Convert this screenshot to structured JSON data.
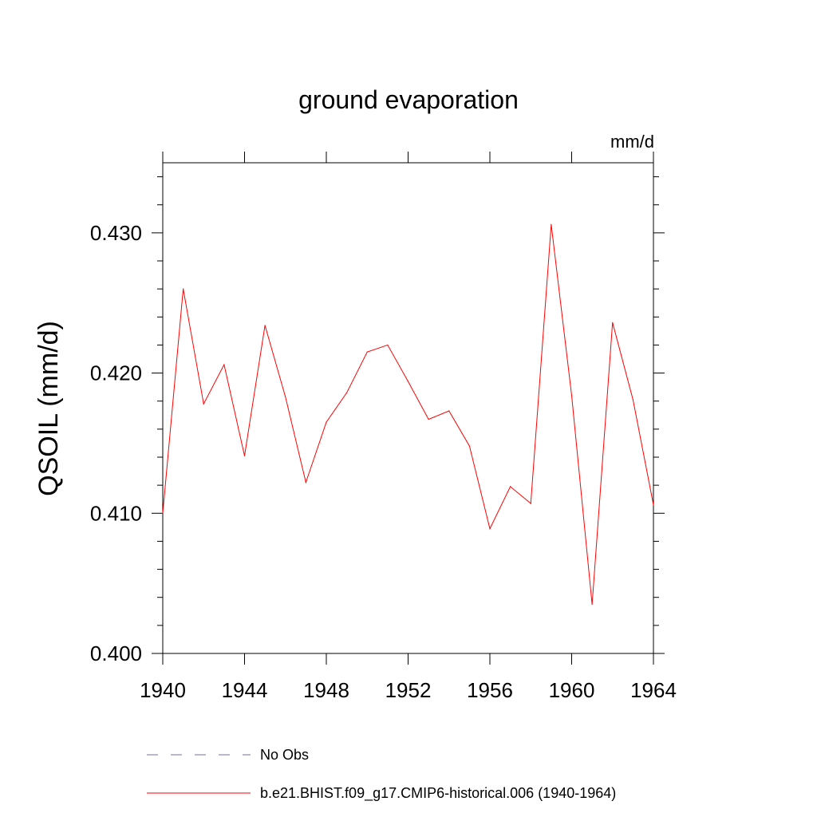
{
  "chart_data": {
    "type": "line",
    "title": "ground evaporation",
    "units_label": "mm/d",
    "ylabel": "QSOIL  (mm/d)",
    "xlabel": "",
    "xlim": [
      1940,
      1964
    ],
    "ylim": [
      0.4,
      0.435
    ],
    "x_ticks": [
      1940,
      1944,
      1948,
      1952,
      1956,
      1960,
      1964
    ],
    "x_tick_labels": [
      "1940",
      "1944",
      "1948",
      "1952",
      "1956",
      "1960",
      "1964"
    ],
    "y_ticks": [
      0.4,
      0.41,
      0.42,
      0.43
    ],
    "y_tick_labels": [
      "0.400",
      "0.410",
      "0.420",
      "0.430"
    ],
    "grid": false,
    "legend_position": "bottom",
    "legend": [
      {
        "label": "No Obs",
        "color": "#7b6bb0",
        "dash": "dashed"
      },
      {
        "label": "b.e21.BHIST.f09_g17.CMIP6-historical.006 (1940-1964)",
        "color": "#ff0000",
        "dash": "solid"
      }
    ],
    "series": [
      {
        "name": "b.e21.BHIST.f09_g17.CMIP6-historical.006 (1940-1964)",
        "color": "#ff0000",
        "x": [
          1940,
          1941,
          1942,
          1943,
          1944,
          1945,
          1946,
          1947,
          1948,
          1949,
          1950,
          1951,
          1952,
          1953,
          1954,
          1955,
          1956,
          1957,
          1958,
          1959,
          1960,
          1961,
          1962,
          1963,
          1964
        ],
        "y": [
          0.41,
          0.426,
          0.4178,
          0.4206,
          0.4141,
          0.4234,
          0.4183,
          0.4122,
          0.4165,
          0.4186,
          0.4215,
          0.422,
          0.4194,
          0.4167,
          0.4173,
          0.4148,
          0.4089,
          0.4119,
          0.4107,
          0.4306,
          0.4184,
          0.4035,
          0.4236,
          0.4181,
          0.4106
        ]
      }
    ]
  }
}
